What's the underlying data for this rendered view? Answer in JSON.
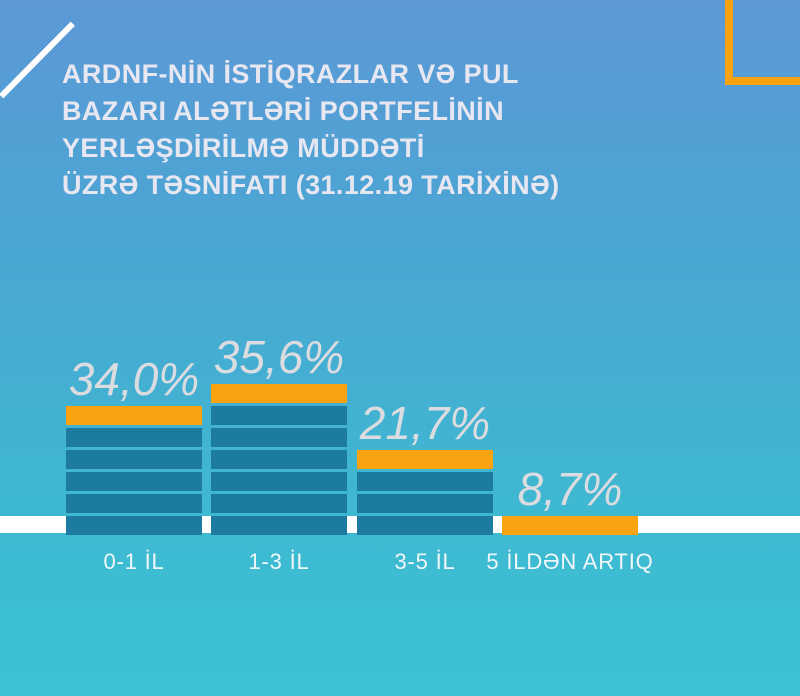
{
  "title": {
    "lines": [
      "ARDNF-NİN İSTİQRAZLAR VƏ PUL",
      "BAZARI ALƏTLƏRİ PORTFELİNİN",
      "YERLƏŞDİRİLMƏ MÜDDƏTİ",
      "ÜZRƏ TƏSNİFATI (31.12.19 TARİXİNƏ)"
    ],
    "full": "ARDNF-NİN İSTİQRAZLAR VƏ PUL BAZARI ALƏTLƏRİ PORTFELİNİN YERLƏŞDİRİLMƏ MÜDDƏTİ ÜZRƏ TƏSNİFATI (31.12.19 TARİXİNƏ)"
  },
  "chart_data": {
    "type": "bar",
    "unit": "%",
    "title": "ARDNF-NİN İSTİQRAZLAR VƏ PUL BAZARI ALƏTLƏRİ PORTFELİNİN YERLƏŞDİRİLMƏ MÜDDƏTİ ÜZRƏ TƏSNİFATI (31.12.19 TARİXİNƏ)",
    "categories": [
      "0-1 İL",
      "1-3 İL",
      "3-5 İL",
      "5 İLDƏN ARTIQ"
    ],
    "values": [
      34.0,
      35.6,
      21.7,
      8.7
    ],
    "value_labels": [
      "34,0%",
      "35,6%",
      "21,7%",
      "8,7%"
    ],
    "legend": null,
    "grid": false,
    "layout_hints": {
      "bar_style": "stacked-segments with orange cap",
      "baseline": "white horizontal band behind bars",
      "labels_position": "values above bars, categories below baseline"
    },
    "bars": [
      {
        "label": "0-1 İL",
        "value": 34.0,
        "value_label": "34,0%",
        "segments": [
          "orange",
          "teal",
          "teal",
          "teal",
          "teal",
          "teal"
        ]
      },
      {
        "label": "1-3 İL",
        "value": 35.6,
        "value_label": "35,6%",
        "segments": [
          "orange",
          "teal",
          "teal",
          "teal",
          "teal",
          "teal",
          "teal"
        ]
      },
      {
        "label": "3-5 İL",
        "value": 21.7,
        "value_label": "21,7%",
        "segments": [
          "orange",
          "teal",
          "teal",
          "teal"
        ]
      },
      {
        "label": "5 İLDƏN ARTIQ",
        "value": 8.7,
        "value_label": "8,7%",
        "segments": [
          "orange"
        ]
      }
    ]
  },
  "colors": {
    "background_top": "#5c98d6",
    "background_bottom": "#3ac2d4",
    "bar_teal": "#1d7aa0",
    "accent_orange": "#f8a30f",
    "baseline_white": "#ffffff",
    "title_text": "#e7e7f2",
    "value_text": "#dbdce0",
    "category_text": "#f1f7fa"
  }
}
